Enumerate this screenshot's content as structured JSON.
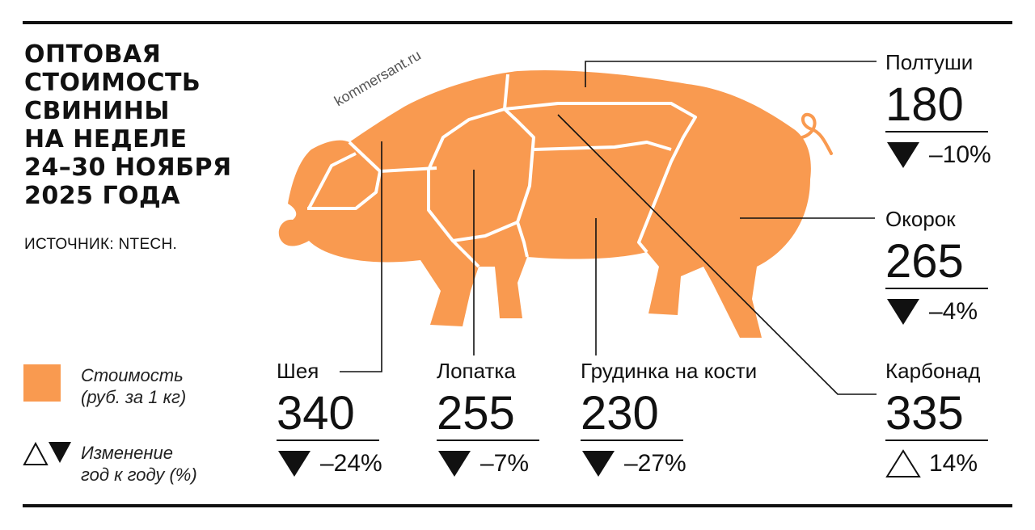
{
  "title": [
    "ОПТОВАЯ",
    "СТОИМОСТЬ",
    "СВИНИНЫ",
    "НА НЕДЕЛЕ",
    "24–30 НОЯБРЯ",
    "2025 ГОДА"
  ],
  "source": "ИСТОЧНИК: NTECH.",
  "watermark": "kommersant.ru",
  "colors": {
    "pork": "#F99A50",
    "ink": "#111111"
  },
  "legend": {
    "price_line1": "Стоимость",
    "price_line2": "(руб. за 1 кг)",
    "change_line1": "Изменение",
    "change_line2": "год к году (%)"
  },
  "cuts": [
    {
      "name": "Полтуши",
      "price": "180",
      "change": "–10%",
      "direction": "down"
    },
    {
      "name": "Окорок",
      "price": "265",
      "change": "–4%",
      "direction": "down"
    },
    {
      "name": "Карбонад",
      "price": "335",
      "change": "14%",
      "direction": "up"
    },
    {
      "name": "Шея",
      "price": "340",
      "change": "–24%",
      "direction": "down"
    },
    {
      "name": "Лопатка",
      "price": "255",
      "change": "–7%",
      "direction": "down"
    },
    {
      "name": "Грудинка на кости",
      "price": "230",
      "change": "–27%",
      "direction": "down"
    }
  ]
}
